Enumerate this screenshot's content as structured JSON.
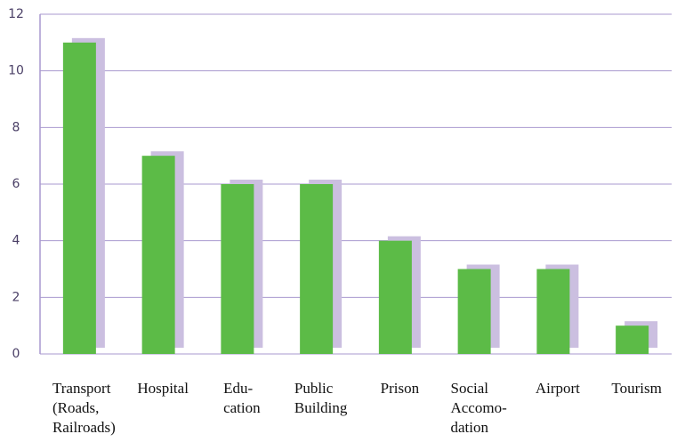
{
  "chart_data": {
    "type": "bar",
    "categories": [
      [
        "Transport",
        "(Roads,",
        "Railroads)"
      ],
      [
        "Hospital"
      ],
      [
        "Edu-",
        "cation"
      ],
      [
        "Public",
        "Building"
      ],
      [
        "Prison"
      ],
      [
        "Social",
        "Accomo-",
        "dation"
      ],
      [
        "Airport"
      ],
      [
        "Tourism"
      ]
    ],
    "values": [
      11,
      7,
      6,
      6,
      4,
      3,
      3,
      1
    ],
    "color": "#5cbb47",
    "shadow_color": "#cbbfe0",
    "grid_color": "#a999cf",
    "ylim": [
      0,
      12
    ],
    "yticks": [
      0,
      2,
      4,
      6,
      8,
      10,
      12
    ],
    "grid": true
  }
}
